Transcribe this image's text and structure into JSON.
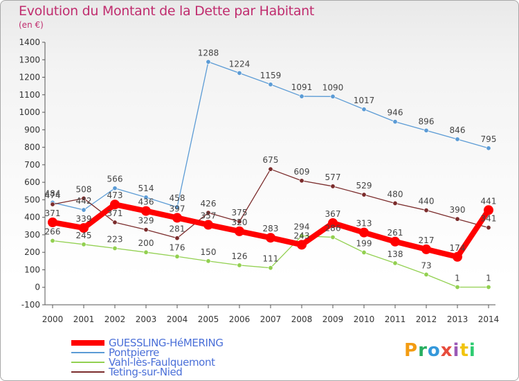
{
  "title": "Evolution du Montant de la Dette par Habitant",
  "unit": "(en €)",
  "logo": "Proxiti",
  "chart_data": {
    "type": "line",
    "categories": [
      "2000",
      "2001",
      "2002",
      "2003",
      "2004",
      "2005",
      "2006",
      "2007",
      "2008",
      "2009",
      "2010",
      "2011",
      "2012",
      "2013",
      "2014"
    ],
    "ylim": [
      -100,
      1400
    ],
    "yticks": [
      -100,
      0,
      100,
      200,
      300,
      400,
      500,
      600,
      700,
      800,
      900,
      1000,
      1100,
      1200,
      1300,
      1400
    ],
    "grid": false,
    "legend_position": "bottom-left",
    "series": [
      {
        "name": "GUESSLING-HéMERING",
        "color": "#ff0000",
        "values": [
          371,
          339,
          473,
          436,
          397,
          357,
          320,
          283,
          243,
          367,
          313,
          261,
          217,
          174,
          441
        ]
      },
      {
        "name": "Pontpierre",
        "color": "#5b9bd5",
        "values": [
          484,
          442,
          566,
          514,
          458,
          1288,
          1224,
          1159,
          1091,
          1090,
          1017,
          946,
          896,
          846,
          795
        ]
      },
      {
        "name": "Vahl-lès-Faulquemont",
        "color": "#92d050",
        "values": [
          266,
          245,
          223,
          200,
          176,
          150,
          126,
          111,
          294,
          286,
          199,
          138,
          73,
          1,
          1
        ]
      },
      {
        "name": "Teting-sur-Nied",
        "color": "#7b2c2c",
        "values": [
          474,
          508,
          371,
          329,
          281,
          426,
          375,
          675,
          609,
          577,
          529,
          480,
          440,
          390,
          341
        ]
      }
    ]
  }
}
